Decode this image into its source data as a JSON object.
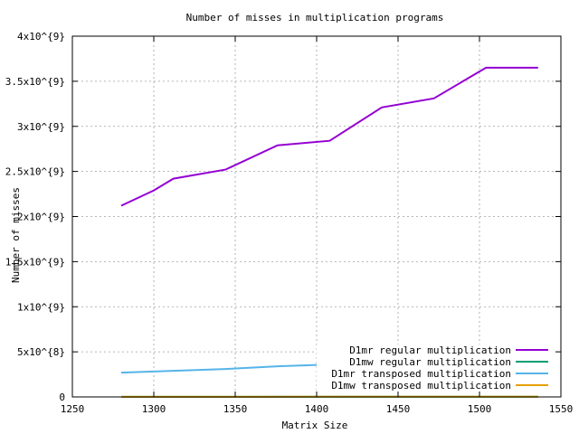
{
  "chart_data": {
    "type": "line",
    "title": "Number of misses in multiplication programs",
    "xlabel": "Matrix Size",
    "ylabel": "Number of misses",
    "xlim": [
      1250,
      1550
    ],
    "ylim": [
      0,
      4000000000
    ],
    "xticks": [
      1250,
      1300,
      1350,
      1400,
      1450,
      1500,
      1550
    ],
    "xtick_labels": [
      "1250",
      "1300",
      "1350",
      "1400",
      "1450",
      "1500",
      "1550"
    ],
    "yticks": [
      0,
      500000000,
      1000000000,
      1500000000,
      2000000000,
      2500000000,
      3000000000,
      3500000000,
      4000000000
    ],
    "ytick_labels": [
      "0",
      "5x10^{8}",
      "1x10^{9}",
      "1.5x10^{9}",
      "2x10^{9}",
      "2.5x10^{9}",
      "3x10^{9}",
      "3.5x10^{9}",
      "4x10^{9}"
    ],
    "grid": true,
    "legend_position": "bottom-right",
    "series": [
      {
        "name": "D1mr regular multiplication",
        "color": "#9400d3",
        "x": [
          1280,
          1300,
          1312,
          1344,
          1376,
          1408,
          1440,
          1472,
          1504,
          1536
        ],
        "y": [
          2120000000,
          2290000000,
          2420000000,
          2520000000,
          2790000000,
          2840000000,
          3210000000,
          3310000000,
          3650000000,
          3650000000
        ]
      },
      {
        "name": "D1mw regular multiplication",
        "color": "#009e73",
        "x": [
          1280,
          1536
        ],
        "y": [
          1500000,
          3000000
        ]
      },
      {
        "name": "D1mr transposed multiplication",
        "color": "#56b4e9",
        "x": [
          1280,
          1312,
          1344,
          1376,
          1408,
          1440,
          1472,
          1504,
          1536
        ],
        "y": [
          270000000,
          290000000,
          310000000,
          340000000,
          360000000,
          380000000,
          400000000,
          430000000,
          460000000
        ]
      },
      {
        "name": "D1mw transposed multiplication",
        "color": "#e69f00",
        "x": [
          1280,
          1536
        ],
        "y": [
          1500000,
          3000000
        ]
      }
    ]
  }
}
